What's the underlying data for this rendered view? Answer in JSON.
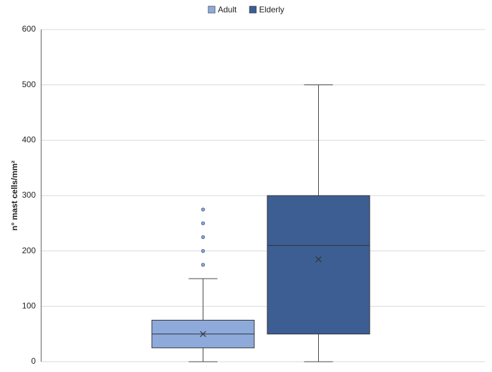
{
  "chart_data": {
    "type": "box",
    "y_label": "n° mast cells/mm²",
    "ylim": [
      0,
      600
    ],
    "yticks": [
      0,
      100,
      200,
      300,
      400,
      500,
      600
    ],
    "grid": true,
    "legend": "top",
    "series": [
      {
        "name": "Adult",
        "color": "#8eaadb",
        "min": 0,
        "q1": 25,
        "median": 50,
        "q3": 75,
        "max": 150,
        "mean": 50,
        "outliers": [
          175,
          200,
          225,
          250,
          275
        ]
      },
      {
        "name": "Elderly",
        "color": "#3c5e92",
        "min": 0,
        "q1": 50,
        "median": 210,
        "q3": 300,
        "max": 500,
        "mean": 185,
        "outliers": []
      }
    ]
  }
}
